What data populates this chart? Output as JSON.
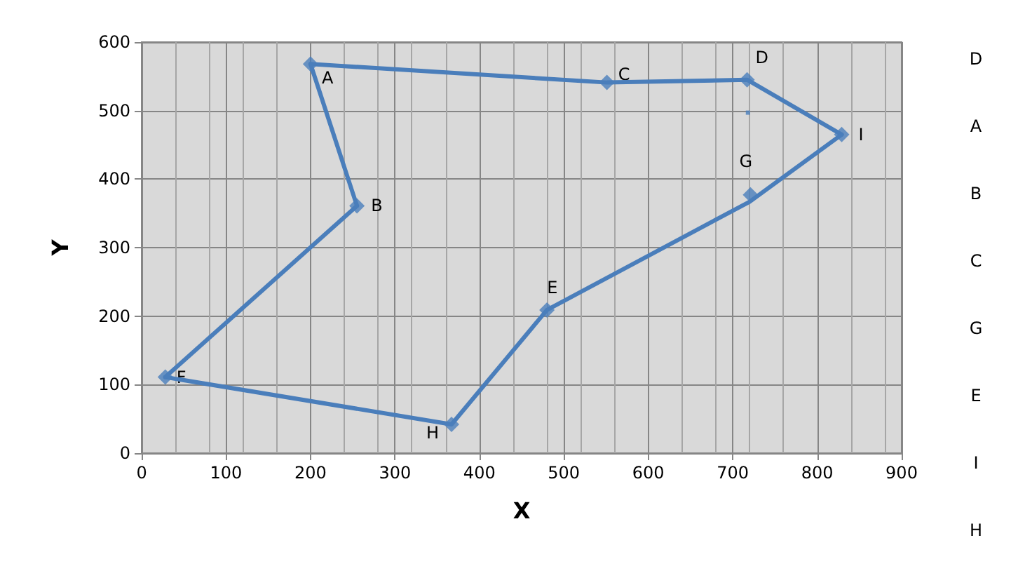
{
  "chart_data": {
    "type": "line",
    "xlabel": "X",
    "ylabel": "Y",
    "xlim": [
      0,
      900
    ],
    "xticks": [
      0,
      100,
      200,
      300,
      400,
      500,
      600,
      700,
      800,
      900
    ],
    "ylim": [
      0,
      600
    ],
    "yticks": [
      0,
      100,
      200,
      300,
      400,
      500,
      600
    ],
    "grid": true,
    "series": [
      {
        "color": "#4a7ebb",
        "marker": "none",
        "x": [
          200,
          551,
          717,
          829
        ],
        "values": [
          568,
          541,
          545,
          465
        ]
      },
      {
        "type": "line",
        "color": "#4a7ebb",
        "marker": "none",
        "x": [
          829,
          720,
          480,
          367,
          28
        ],
        "values": [
          465,
          367,
          209,
          42,
          111
        ]
      },
      {
        "type": "line",
        "color": "#4a7ebb",
        "marker": "none",
        "x": [
          28,
          255
        ],
        "values": [
          111,
          361
        ]
      },
      {
        "type": "line",
        "color": "#4a7ebb",
        "marker": "none",
        "x": [
          255,
          200
        ],
        "values": [
          361,
          568
        ]
      },
      {
        "type": "scatter",
        "color": "#4a7ebb",
        "marker": "diamond",
        "x": [
          200,
          255,
          551,
          717,
          480,
          28,
          721,
          367,
          829
        ],
        "values": [
          568,
          361,
          541,
          545,
          209,
          111,
          377,
          42,
          465
        ]
      },
      {
        "type": "scatter",
        "color": "#4a7ebb",
        "marker": "square",
        "x": [
          718
        ],
        "values": [
          497
        ]
      }
    ],
    "annotations": [
      {
        "text": "A",
        "x": 200,
        "y": 568
      },
      {
        "text": "B",
        "x": 255,
        "y": 361
      },
      {
        "text": "C",
        "x": 551,
        "y": 541
      },
      {
        "text": "D",
        "x": 717,
        "y": 545
      },
      {
        "text": "E",
        "x": 480,
        "y": 209
      },
      {
        "text": "F",
        "x": 28,
        "y": 111
      },
      {
        "text": "G",
        "x": 721,
        "y": 377
      },
      {
        "text": "H",
        "x": 367,
        "y": 42
      },
      {
        "text": "I",
        "x": 829,
        "y": 465
      },
      "D",
      "A",
      "B",
      "C",
      "G",
      "E",
      "I",
      "H"
    ]
  }
}
